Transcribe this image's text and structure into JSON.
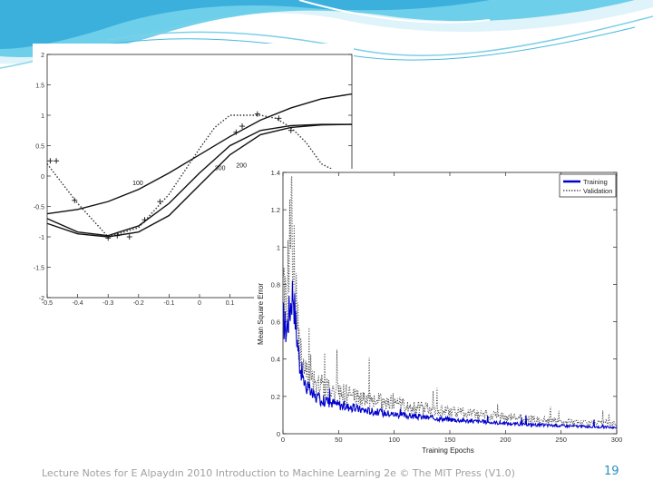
{
  "footer": {
    "text": "Lecture Notes for E Alpaydın 2010 Introduction to Machine Learning 2e © The MIT Press (V1.0)",
    "page_number": "19"
  },
  "colors": {
    "header_accent": "#5bc8e6",
    "training": "#0000cc",
    "validation": "#555555",
    "page_number": "#2a8fbf"
  },
  "chart_data": [
    {
      "type": "line",
      "title": "",
      "xlabel": "",
      "ylabel": "",
      "xlim": [
        -0.5,
        0.5
      ],
      "ylim": [
        -2,
        2
      ],
      "yticks": [
        "2",
        "1.5",
        "1",
        "0.5",
        "0",
        "-0.5",
        "-1",
        "-1.5",
        "-2"
      ],
      "xticks": [
        "-0.5",
        "-0.4",
        "-0.3",
        "-0.2",
        "-0.1",
        "0",
        "0.1"
      ],
      "series": [
        {
          "label": "100",
          "x": [
            -0.5,
            -0.4,
            -0.3,
            -0.2,
            -0.1,
            0.0,
            0.1,
            0.2,
            0.3,
            0.4,
            0.5
          ],
          "y": [
            -0.62,
            -0.55,
            -0.42,
            -0.22,
            0.05,
            0.35,
            0.65,
            0.92,
            1.12,
            1.27,
            1.35
          ]
        },
        {
          "label": "300",
          "x": [
            -0.5,
            -0.4,
            -0.3,
            -0.2,
            -0.1,
            0.0,
            0.1,
            0.2,
            0.3,
            0.4,
            0.5
          ],
          "y": [
            -0.7,
            -0.92,
            -0.98,
            -0.82,
            -0.45,
            0.05,
            0.5,
            0.75,
            0.83,
            0.85,
            0.85
          ]
        },
        {
          "label": "200",
          "x": [
            -0.5,
            -0.4,
            -0.3,
            -0.2,
            -0.1,
            0.0,
            0.1,
            0.2,
            0.3,
            0.4,
            0.5
          ],
          "y": [
            -0.78,
            -0.95,
            -1.0,
            -0.92,
            -0.65,
            -0.15,
            0.35,
            0.68,
            0.8,
            0.84,
            0.85
          ]
        }
      ],
      "dotted_target": {
        "x": [
          -0.5,
          -0.4,
          -0.3,
          -0.2,
          -0.1,
          0.0,
          0.05,
          0.1,
          0.2,
          0.25,
          0.3,
          0.35,
          0.4,
          0.5
        ],
        "y": [
          0.2,
          -0.45,
          -1.0,
          -0.85,
          -0.3,
          0.45,
          0.8,
          1.0,
          1.0,
          0.95,
          0.8,
          0.55,
          0.2,
          -0.05
        ]
      },
      "points": {
        "x": [
          -0.49,
          -0.47,
          -0.41,
          -0.3,
          -0.27,
          -0.23,
          -0.18,
          -0.13,
          0.12,
          0.14,
          0.19,
          0.26,
          0.3
        ],
        "y": [
          0.25,
          0.25,
          -0.4,
          -1.02,
          -0.98,
          -1.0,
          -0.72,
          -0.42,
          0.72,
          0.82,
          1.02,
          0.95,
          0.75
        ]
      },
      "annotations": [
        {
          "text": "100",
          "x": -0.22,
          "y": -0.15
        },
        {
          "text": "300",
          "x": 0.05,
          "y": 0.1
        },
        {
          "text": "200",
          "x": 0.12,
          "y": 0.14
        }
      ]
    },
    {
      "type": "line",
      "title": "",
      "xlabel": "Training Epochs",
      "ylabel": "Mean Square Error",
      "xlim": [
        0,
        300
      ],
      "ylim": [
        0,
        1.4
      ],
      "xticks": [
        "0",
        "50",
        "100",
        "150",
        "200",
        "250",
        "300"
      ],
      "yticks": [
        "0",
        "0.2",
        "0.4",
        "0.6",
        "0.8",
        "1",
        "1.2",
        "1.4"
      ],
      "legend": "top-right",
      "series": [
        {
          "name": "Training",
          "style": "solid",
          "x": [
            0,
            3,
            6,
            9,
            12,
            15,
            18,
            20,
            23,
            25,
            28,
            31,
            35,
            38,
            42,
            45,
            50,
            55,
            60,
            65,
            70,
            75,
            80,
            90,
            100,
            110,
            120,
            130,
            140,
            150,
            160,
            170,
            180,
            190,
            200,
            210,
            220,
            230,
            240,
            250,
            260,
            270,
            280,
            290,
            300
          ],
          "y": [
            0.62,
            0.55,
            0.66,
            0.78,
            0.55,
            0.38,
            0.3,
            0.26,
            0.24,
            0.22,
            0.2,
            0.19,
            0.18,
            0.175,
            0.17,
            0.165,
            0.155,
            0.148,
            0.142,
            0.136,
            0.13,
            0.125,
            0.12,
            0.112,
            0.105,
            0.098,
            0.092,
            0.087,
            0.082,
            0.077,
            0.072,
            0.068,
            0.064,
            0.06,
            0.056,
            0.053,
            0.05,
            0.047,
            0.045,
            0.043,
            0.041,
            0.039,
            0.037,
            0.035,
            0.033
          ]
        },
        {
          "name": "Validation",
          "style": "dotted",
          "x": [
            0,
            3,
            6,
            8,
            9,
            11,
            13,
            15,
            18,
            20,
            23,
            25,
            28,
            31,
            35,
            38,
            42,
            45,
            50,
            55,
            60,
            65,
            70,
            75,
            80,
            90,
            100,
            110,
            120,
            130,
            140,
            150,
            160,
            170,
            180,
            190,
            200,
            210,
            220,
            230,
            240,
            250,
            260,
            270,
            280,
            290,
            300
          ],
          "y": [
            0.75,
            0.65,
            1.05,
            1.2,
            0.95,
            0.85,
            0.6,
            0.45,
            0.36,
            0.32,
            0.3,
            0.28,
            0.27,
            0.26,
            0.25,
            0.24,
            0.23,
            0.225,
            0.22,
            0.21,
            0.205,
            0.2,
            0.19,
            0.185,
            0.18,
            0.17,
            0.16,
            0.15,
            0.14,
            0.133,
            0.126,
            0.12,
            0.113,
            0.107,
            0.1,
            0.095,
            0.09,
            0.085,
            0.08,
            0.076,
            0.072,
            0.068,
            0.064,
            0.06,
            0.057,
            0.054,
            0.05
          ]
        }
      ]
    }
  ]
}
